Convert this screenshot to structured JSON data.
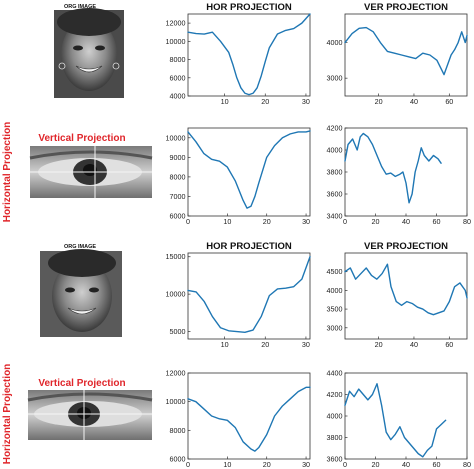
{
  "figure": {
    "face_title_1": "ORG IMAGE",
    "face_title_2": "ORG IMAGE",
    "vertical_projection_label_1": "Vertical Projection",
    "vertical_projection_label_2": "Vertical Projection",
    "horizontal_projection_label_1": "Horizontal Projection",
    "horizontal_projection_label_2": "Horizontal Projection"
  },
  "chart_data": [
    {
      "id": "row1-hor",
      "type": "line",
      "title": "HOR PROJECTION",
      "xlim": [
        1,
        31
      ],
      "ylim": [
        4000,
        13000
      ],
      "xticks": [
        10,
        20,
        30
      ],
      "yticks": [
        4000,
        6000,
        8000,
        10000,
        12000
      ],
      "series": [
        {
          "x": [
            1,
            3,
            5,
            7,
            9,
            11,
            12,
            13,
            14,
            15,
            16,
            17,
            18,
            19,
            20,
            21,
            23,
            25,
            27,
            29,
            31
          ],
          "values": [
            11000,
            10850,
            10800,
            11000,
            10000,
            8800,
            7500,
            6000,
            4900,
            4300,
            4150,
            4300,
            4900,
            6200,
            7800,
            9300,
            10800,
            11200,
            11400,
            12000,
            13000
          ]
        }
      ]
    },
    {
      "id": "row1-ver",
      "type": "line",
      "title": "VER PROJECTION",
      "xlim": [
        1,
        70
      ],
      "ylim": [
        2500,
        4800
      ],
      "xticks": [
        20,
        40,
        60
      ],
      "yticks": [
        3000,
        4000
      ],
      "series": [
        {
          "x": [
            1,
            5,
            9,
            13,
            17,
            21,
            25,
            29,
            33,
            37,
            41,
            45,
            49,
            53,
            57,
            61,
            63,
            65,
            67,
            69,
            70
          ],
          "values": [
            4000,
            4250,
            4400,
            4420,
            4300,
            4000,
            3750,
            3700,
            3650,
            3600,
            3550,
            3700,
            3650,
            3500,
            3100,
            3650,
            3800,
            4000,
            4300,
            4000,
            4200
          ]
        }
      ]
    },
    {
      "id": "row2-hor",
      "type": "line",
      "title": "",
      "xlim": [
        0,
        31
      ],
      "ylim": [
        6000,
        10500
      ],
      "xticks": [
        0,
        10,
        20,
        30
      ],
      "yticks": [
        6000,
        7000,
        8000,
        9000,
        10000
      ],
      "series": [
        {
          "x": [
            0,
            2,
            4,
            6,
            8,
            10,
            12,
            14,
            15,
            16,
            17,
            18,
            20,
            22,
            24,
            26,
            28,
            30,
            31
          ],
          "values": [
            10300,
            9800,
            9200,
            8900,
            8800,
            8500,
            7800,
            6800,
            6400,
            6500,
            7000,
            7700,
            9000,
            9600,
            10000,
            10200,
            10300,
            10300,
            10350
          ]
        }
      ]
    },
    {
      "id": "row2-ver",
      "type": "line",
      "title": "",
      "xlim": [
        0,
        80
      ],
      "ylim": [
        3400,
        4200
      ],
      "xticks": [
        0,
        20,
        40,
        60,
        80
      ],
      "yticks": [
        3400,
        3600,
        3800,
        4000,
        4200
      ],
      "series": [
        {
          "x": [
            0,
            2,
            5,
            8,
            10,
            12,
            15,
            18,
            21,
            24,
            27,
            30,
            33,
            36,
            38,
            40,
            42,
            44,
            46,
            48,
            50,
            52,
            55,
            58,
            61,
            63
          ],
          "values": [
            3900,
            4050,
            4100,
            4000,
            4120,
            4150,
            4120,
            4050,
            3950,
            3850,
            3780,
            3790,
            3760,
            3780,
            3800,
            3700,
            3520,
            3600,
            3800,
            3900,
            4020,
            3950,
            3900,
            3950,
            3920,
            3880
          ]
        }
      ]
    },
    {
      "id": "row3-hor",
      "type": "line",
      "title": "HOR PROJECTION",
      "xlim": [
        1,
        31
      ],
      "ylim": [
        4000,
        15500
      ],
      "xticks": [
        10,
        20,
        30
      ],
      "yticks": [
        5000,
        10000,
        15000
      ],
      "series": [
        {
          "x": [
            1,
            3,
            5,
            7,
            9,
            11,
            13,
            15,
            17,
            19,
            21,
            23,
            25,
            27,
            29,
            31
          ],
          "values": [
            10500,
            10300,
            9000,
            7000,
            5500,
            5100,
            5000,
            4900,
            5200,
            7000,
            9800,
            10700,
            10800,
            11000,
            12000,
            15000
          ]
        }
      ]
    },
    {
      "id": "row3-ver",
      "type": "line",
      "title": "VER PROJECTION",
      "xlim": [
        1,
        70
      ],
      "ylim": [
        2700,
        5000
      ],
      "xticks": [
        20,
        40,
        60
      ],
      "yticks": [
        3000,
        3500,
        4000,
        4500
      ],
      "series": [
        {
          "x": [
            1,
            4,
            7,
            10,
            13,
            16,
            19,
            22,
            25,
            27,
            30,
            33,
            36,
            39,
            42,
            45,
            48,
            51,
            54,
            57,
            60,
            63,
            66,
            69,
            70
          ],
          "values": [
            4500,
            4600,
            4300,
            4450,
            4600,
            4400,
            4300,
            4450,
            4700,
            4100,
            3700,
            3600,
            3700,
            3650,
            3550,
            3500,
            3400,
            3350,
            3400,
            3450,
            3700,
            4100,
            4200,
            4000,
            3800
          ]
        }
      ]
    },
    {
      "id": "row4-hor",
      "type": "line",
      "title": "",
      "xlim": [
        0,
        31
      ],
      "ylim": [
        6000,
        12000
      ],
      "xticks": [
        0,
        10,
        20,
        30
      ],
      "yticks": [
        6000,
        8000,
        10000,
        12000
      ],
      "series": [
        {
          "x": [
            0,
            2,
            4,
            6,
            8,
            10,
            12,
            14,
            16,
            17,
            18,
            20,
            22,
            24,
            26,
            28,
            30,
            31
          ],
          "values": [
            10200,
            10000,
            9500,
            9000,
            8800,
            8700,
            8200,
            7200,
            6700,
            6550,
            6800,
            7700,
            9000,
            9700,
            10200,
            10700,
            11000,
            11000
          ]
        }
      ]
    },
    {
      "id": "row4-ver",
      "type": "line",
      "title": "",
      "xlim": [
        0,
        80
      ],
      "ylim": [
        3600,
        4400
      ],
      "xticks": [
        0,
        20,
        40,
        60,
        80
      ],
      "yticks": [
        3600,
        3800,
        4000,
        4200,
        4400
      ],
      "series": [
        {
          "x": [
            0,
            3,
            6,
            9,
            12,
            15,
            18,
            21,
            24,
            27,
            30,
            33,
            36,
            39,
            42,
            45,
            48,
            51,
            54,
            57,
            60,
            63,
            66
          ],
          "values": [
            4100,
            4230,
            4180,
            4250,
            4200,
            4150,
            4200,
            4300,
            4100,
            3850,
            3780,
            3830,
            3900,
            3800,
            3750,
            3700,
            3650,
            3620,
            3680,
            3720,
            3880,
            3920,
            3960
          ]
        }
      ]
    }
  ]
}
